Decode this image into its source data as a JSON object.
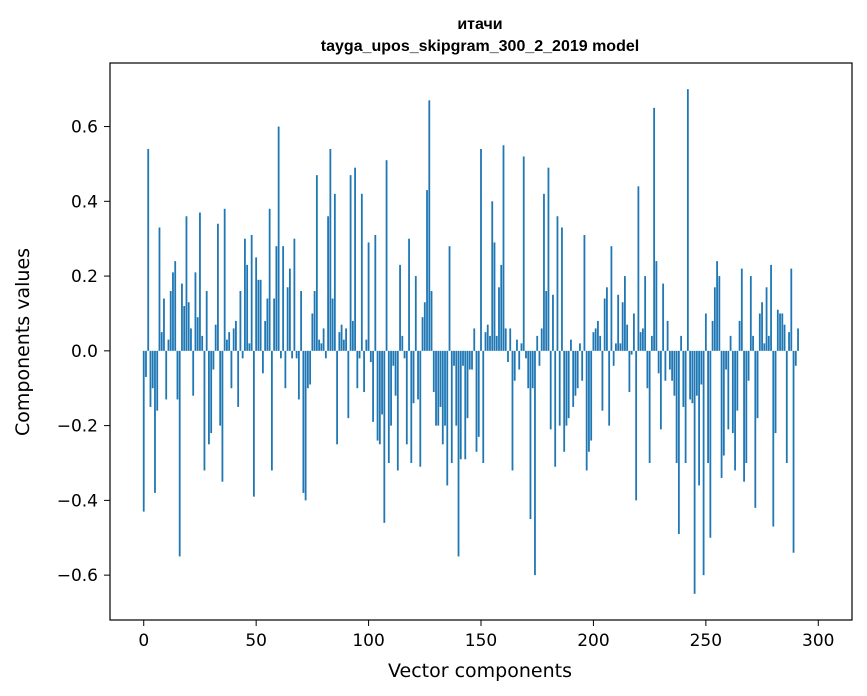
{
  "chart_data": {
    "type": "bar",
    "title_line1": "итачи",
    "title_line2": "tayga_upos_skipgram_300_2_2019 model",
    "xlabel": "Vector components",
    "ylabel": "Components values",
    "xlim": [
      -15,
      315
    ],
    "ylim": [
      -0.72,
      0.77
    ],
    "bar_color": "#1f77b4",
    "x_ticks": [
      0,
      50,
      100,
      150,
      200,
      250,
      300
    ],
    "x_tick_labels": [
      "0",
      "50",
      "100",
      "150",
      "200",
      "250",
      "300"
    ],
    "y_ticks": [
      -0.6,
      -0.4,
      -0.2,
      0.0,
      0.2,
      0.4,
      0.6
    ],
    "y_tick_labels": [
      "−0.6",
      "−0.4",
      "−0.2",
      "0.0",
      "0.2",
      "0.4",
      "0.6"
    ],
    "values": [
      -0.43,
      -0.07,
      0.54,
      -0.15,
      -0.1,
      -0.38,
      -0.16,
      0.33,
      0.05,
      0.14,
      -0.13,
      0.03,
      0.16,
      0.21,
      0.24,
      -0.13,
      -0.55,
      0.18,
      0.12,
      0.36,
      0.13,
      0.06,
      -0.12,
      0.21,
      0.09,
      0.37,
      0.04,
      -0.32,
      0.16,
      -0.25,
      -0.22,
      -0.05,
      0.07,
      0.34,
      -0.2,
      -0.35,
      0.38,
      0.03,
      0.05,
      -0.1,
      0.06,
      0.08,
      -0.15,
      0.16,
      -0.02,
      0.3,
      0.23,
      0.02,
      0.31,
      -0.39,
      0.25,
      0.19,
      0.19,
      -0.06,
      0.08,
      0.14,
      0.38,
      -0.32,
      0.14,
      0.28,
      0.6,
      -0.02,
      0.28,
      -0.1,
      0.17,
      0.22,
      -0.02,
      0.3,
      -0.02,
      -0.13,
      0.16,
      -0.38,
      -0.4,
      -0.1,
      -0.09,
      0.1,
      0.16,
      0.47,
      0.03,
      0.02,
      0.06,
      -0.02,
      0.36,
      0.54,
      0.14,
      0.42,
      -0.25,
      0.05,
      0.07,
      0.03,
      0.06,
      -0.18,
      0.47,
      0.08,
      0.49,
      -0.1,
      -0.02,
      0.42,
      -0.11,
      0.03,
      0.29,
      -0.03,
      -0.19,
      0.31,
      -0.24,
      -0.25,
      -0.17,
      -0.46,
      0.51,
      -0.3,
      -0.2,
      -0.04,
      -0.12,
      -0.32,
      0.23,
      0.04,
      -0.02,
      -0.25,
      0.3,
      -0.3,
      -0.14,
      0.2,
      -0.13,
      -0.31,
      0.09,
      0.13,
      0.43,
      0.67,
      0.16,
      -0.11,
      -0.2,
      -0.2,
      -0.15,
      -0.25,
      -0.2,
      -0.36,
      0.28,
      -0.3,
      -0.04,
      -0.2,
      -0.55,
      -0.29,
      -0.04,
      -0.29,
      -0.18,
      -0.05,
      -0.05,
      0.06,
      -0.27,
      -0.23,
      0.54,
      -0.3,
      0.05,
      0.07,
      0.04,
      0.4,
      0.29,
      0.04,
      0.17,
      0.23,
      0.55,
      0.06,
      -0.03,
      0.06,
      -0.32,
      -0.08,
      0.03,
      -0.05,
      0.02,
      0.52,
      -0.02,
      -0.1,
      -0.45,
      -0.1,
      -0.6,
      0.04,
      -0.04,
      0.06,
      0.42,
      0.16,
      0.49,
      -0.21,
      0.15,
      -0.31,
      0.36,
      -0.2,
      0.33,
      -0.27,
      -0.2,
      -0.18,
      0.03,
      -0.15,
      -0.12,
      -0.1,
      0.02,
      -0.08,
      0.31,
      -0.32,
      -0.27,
      -0.24,
      0.05,
      0.06,
      0.08,
      0.04,
      -0.16,
      0.14,
      0.17,
      -0.2,
      0.28,
      -0.04,
      0.02,
      0.15,
      0.02,
      0.13,
      0.2,
      0.07,
      -0.11,
      -0.01,
      0.1,
      -0.4,
      0.44,
      0.05,
      0.06,
      0.2,
      -0.1,
      -0.3,
      0.04,
      0.65,
      0.24,
      -0.06,
      -0.21,
      0.18,
      -0.08,
      0.08,
      -0.05,
      -0.08,
      -0.12,
      -0.3,
      -0.49,
      0.04,
      -0.15,
      -0.3,
      0.7,
      -0.13,
      -0.14,
      -0.65,
      -0.12,
      -0.36,
      -0.09,
      -0.6,
      0.1,
      -0.3,
      -0.5,
      0.08,
      0.17,
      0.24,
      0.2,
      -0.34,
      -0.28,
      -0.05,
      -0.21,
      0.04,
      -0.22,
      -0.32,
      -0.16,
      0.08,
      0.22,
      -0.35,
      -0.3,
      -0.08,
      0.2,
      0.04,
      -0.42,
      -0.18,
      0.1,
      0.13,
      0.02,
      0.17,
      0.04,
      0.23,
      -0.47,
      -0.22,
      0.11,
      0.1,
      0.1,
      0.07,
      -0.3,
      0.05,
      0.22,
      -0.54,
      -0.04,
      0.06
    ]
  }
}
